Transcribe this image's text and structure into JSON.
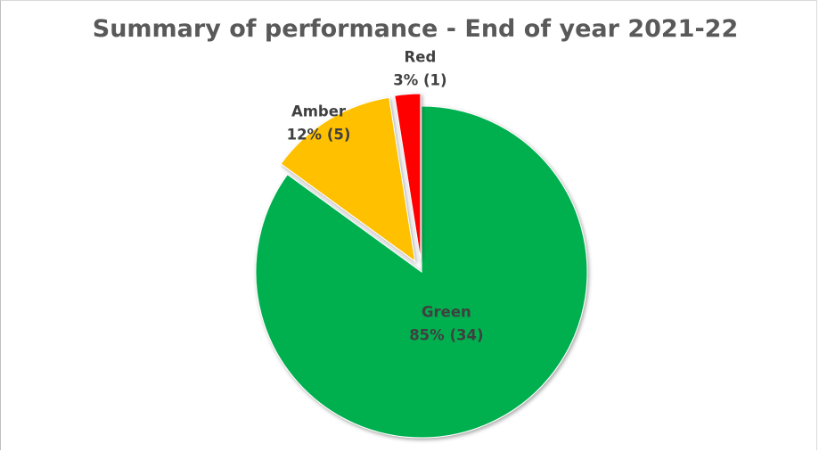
{
  "chart_data": {
    "type": "pie",
    "title": "Summary of performance - End of year 2021-22",
    "slices": [
      {
        "name": "Green",
        "value": 34,
        "label": "85% (34)",
        "color": "#00b050",
        "exploded": false
      },
      {
        "name": "Amber",
        "value": 5,
        "label": "12% (5)",
        "color": "#ffc000",
        "exploded": true
      },
      {
        "name": "Red",
        "value": 1,
        "label": "3% (1)",
        "color": "#ff0000",
        "exploded": true
      }
    ],
    "start_angle": "12 o'clock",
    "direction": "clockwise",
    "legend": "none"
  }
}
